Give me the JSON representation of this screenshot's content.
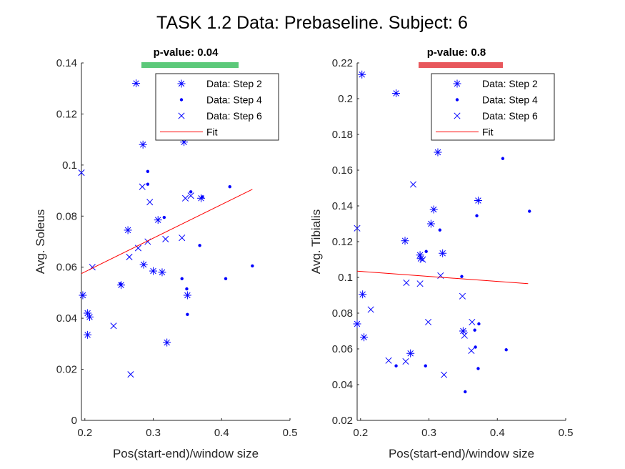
{
  "figure_title": "TASK 1.2 Data: Prebaseline. Subject: 6",
  "chart_data": [
    {
      "type": "scatter",
      "xlabel": "Pos(start-end)/window size",
      "ylabel": "Avg. Soleus",
      "xlim": [
        0.195,
        0.5
      ],
      "ylim": [
        0,
        0.14
      ],
      "xticks": [
        "0.2",
        "0.3",
        "0.4",
        "0.5"
      ],
      "xtick_values": [
        0.2,
        0.3,
        0.4,
        0.5
      ],
      "yticks": [
        "0",
        "0.02",
        "0.04",
        "0.06",
        "0.08",
        "0.1",
        "0.12",
        "0.14"
      ],
      "ytick_values": [
        0,
        0.02,
        0.04,
        0.06,
        0.08,
        0.1,
        0.12,
        0.14
      ],
      "pvalue": {
        "label": "p-value: 0.04",
        "color": "#5cc97a"
      },
      "legend_position": "top-right",
      "marker_color": "#0000ff",
      "fit_color": "#ff0000",
      "series": [
        {
          "name": "Data: Step 2",
          "marker": "asterisk",
          "points": [
            [
              0.275,
              0.132
            ],
            [
              0.285,
              0.108
            ],
            [
              0.345,
              0.109
            ],
            [
              0.37,
              0.087
            ],
            [
              0.307,
              0.0785
            ],
            [
              0.263,
              0.0745
            ],
            [
              0.286,
              0.061
            ],
            [
              0.3,
              0.0585
            ],
            [
              0.313,
              0.058
            ],
            [
              0.253,
              0.053
            ],
            [
              0.35,
              0.049
            ],
            [
              0.197,
              0.049
            ],
            [
              0.204,
              0.042
            ],
            [
              0.207,
              0.0405
            ],
            [
              0.204,
              0.0335
            ],
            [
              0.32,
              0.0305
            ]
          ]
        },
        {
          "name": "Data: Step 4",
          "marker": "dot",
          "points": [
            [
              0.292,
              0.0975
            ],
            [
              0.292,
              0.0925
            ],
            [
              0.355,
              0.0895
            ],
            [
              0.412,
              0.0915
            ],
            [
              0.372,
              0.0875
            ],
            [
              0.316,
              0.0795
            ],
            [
              0.368,
              0.0685
            ],
            [
              0.445,
              0.0605
            ],
            [
              0.342,
              0.0555
            ],
            [
              0.406,
              0.0555
            ],
            [
              0.349,
              0.0515
            ],
            [
              0.35,
              0.0415
            ],
            [
              0.252,
              0.0535
            ]
          ]
        },
        {
          "name": "Data: Step 6",
          "marker": "x",
          "points": [
            [
              0.195,
              0.097
            ],
            [
              0.284,
              0.0915
            ],
            [
              0.295,
              0.0855
            ],
            [
              0.355,
              0.088
            ],
            [
              0.347,
              0.087
            ],
            [
              0.342,
              0.0715
            ],
            [
              0.318,
              0.071
            ],
            [
              0.292,
              0.07
            ],
            [
              0.278,
              0.0675
            ],
            [
              0.265,
              0.064
            ],
            [
              0.211,
              0.06
            ],
            [
              0.242,
              0.037
            ],
            [
              0.267,
              0.018
            ]
          ]
        }
      ],
      "fit": {
        "name": "Fit",
        "x": [
          0.195,
          0.445
        ],
        "y": [
          0.0575,
          0.0905
        ]
      }
    },
    {
      "type": "scatter",
      "xlabel": "Pos(start-end)/window size",
      "ylabel": "Avg. Tibialis",
      "xlim": [
        0.195,
        0.5
      ],
      "ylim": [
        0.02,
        0.22
      ],
      "xticks": [
        "0.2",
        "0.3",
        "0.4",
        "0.5"
      ],
      "xtick_values": [
        0.2,
        0.3,
        0.4,
        0.5
      ],
      "yticks": [
        "0.02",
        "0.04",
        "0.06",
        "0.08",
        "0.1",
        "0.12",
        "0.14",
        "0.16",
        "0.18",
        "0.2",
        "0.22"
      ],
      "ytick_values": [
        0.02,
        0.04,
        0.06,
        0.08,
        0.1,
        0.12,
        0.14,
        0.16,
        0.18,
        0.2,
        0.22
      ],
      "pvalue": {
        "label": "p-value: 0.8",
        "color": "#e8575c"
      },
      "legend_position": "top-right",
      "marker_color": "#0000ff",
      "fit_color": "#ff0000",
      "series": [
        {
          "name": "Data: Step 2",
          "marker": "asterisk",
          "points": [
            [
              0.202,
              0.2135
            ],
            [
              0.252,
              0.203
            ],
            [
              0.313,
              0.17
            ],
            [
              0.372,
              0.143
            ],
            [
              0.307,
              0.138
            ],
            [
              0.303,
              0.13
            ],
            [
              0.265,
              0.1205
            ],
            [
              0.287,
              0.1125
            ],
            [
              0.288,
              0.1105
            ],
            [
              0.32,
              0.1135
            ],
            [
              0.203,
              0.0905
            ],
            [
              0.195,
              0.074
            ],
            [
              0.205,
              0.0665
            ],
            [
              0.273,
              0.0575
            ],
            [
              0.35,
              0.07
            ]
          ]
        },
        {
          "name": "Data: Step 4",
          "marker": "dot",
          "points": [
            [
              0.408,
              0.1665
            ],
            [
              0.447,
              0.137
            ],
            [
              0.37,
              0.1345
            ],
            [
              0.316,
              0.1265
            ],
            [
              0.296,
              0.1145
            ],
            [
              0.348,
              0.1005
            ],
            [
              0.367,
              0.0705
            ],
            [
              0.373,
              0.074
            ],
            [
              0.368,
              0.061
            ],
            [
              0.413,
              0.0595
            ],
            [
              0.252,
              0.0505
            ],
            [
              0.295,
              0.0505
            ],
            [
              0.372,
              0.049
            ],
            [
              0.353,
              0.036
            ]
          ]
        },
        {
          "name": "Data: Step 6",
          "marker": "x",
          "points": [
            [
              0.277,
              0.152
            ],
            [
              0.195,
              0.1275
            ],
            [
              0.317,
              0.101
            ],
            [
              0.291,
              0.11
            ],
            [
              0.267,
              0.097
            ],
            [
              0.287,
              0.0965
            ],
            [
              0.349,
              0.0895
            ],
            [
              0.215,
              0.082
            ],
            [
              0.299,
              0.075
            ],
            [
              0.363,
              0.075
            ],
            [
              0.352,
              0.0675
            ],
            [
              0.362,
              0.059
            ],
            [
              0.241,
              0.0535
            ],
            [
              0.266,
              0.053
            ],
            [
              0.322,
              0.0455
            ]
          ]
        }
      ],
      "fit": {
        "name": "Fit",
        "x": [
          0.195,
          0.445
        ],
        "y": [
          0.1035,
          0.0965
        ]
      }
    }
  ]
}
